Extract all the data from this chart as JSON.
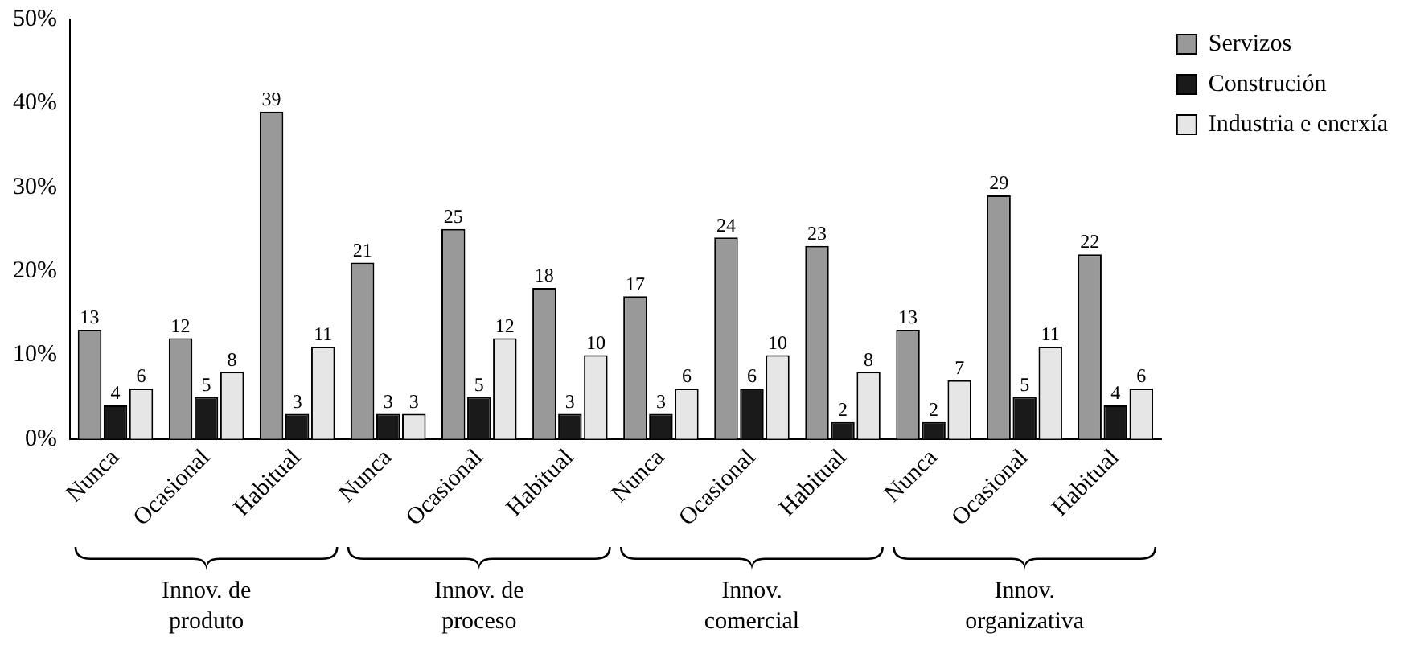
{
  "chart_data": {
    "type": "bar",
    "categories": [
      "Nunca",
      "Ocasional",
      "Habitual",
      "Nunca",
      "Ocasional",
      "Habitual",
      "Nunca",
      "Ocasional",
      "Habitual",
      "Nunca",
      "Ocasional",
      "Habitual"
    ],
    "series": [
      {
        "name": "Servizos",
        "color": "#999999",
        "values": [
          13,
          12,
          39,
          21,
          25,
          18,
          17,
          24,
          23,
          13,
          29,
          22
        ]
      },
      {
        "name": "Construción",
        "color": "#1a1a1a",
        "values": [
          4,
          5,
          3,
          3,
          5,
          3,
          3,
          6,
          2,
          2,
          5,
          4
        ]
      },
      {
        "name": "Industria e enerxía",
        "color": "#e6e6e6",
        "values": [
          6,
          8,
          11,
          3,
          12,
          10,
          6,
          10,
          8,
          7,
          11,
          6
        ]
      }
    ],
    "ylim": [
      0,
      50
    ],
    "yticks": [
      {
        "value": 0,
        "label": "0%"
      },
      {
        "value": 10,
        "label": "10%"
      },
      {
        "value": 20,
        "label": "20%"
      },
      {
        "value": 30,
        "label": "30%"
      },
      {
        "value": 40,
        "label": "40%"
      },
      {
        "value": 50,
        "label": "50%"
      }
    ],
    "grid": false,
    "legend": "top right",
    "data_labels": true,
    "annotations": [
      "Innov. de\nproduto",
      "Innov. de\nproceso",
      "Innov.\ncomercial",
      "Innov.\norganizativa"
    ]
  }
}
